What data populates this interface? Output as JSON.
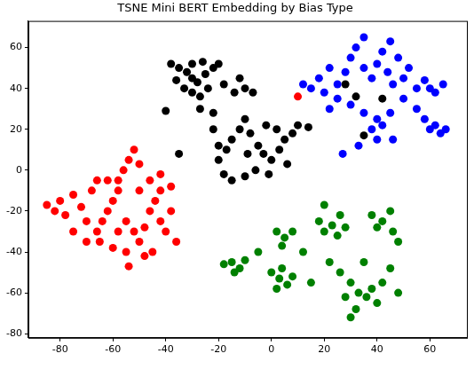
{
  "chart_data": {
    "type": "scatter",
    "title": "TSNE Mini BERT Embedding by Bias Type",
    "xlim": [
      -92,
      74
    ],
    "ylim": [
      -82,
      73
    ],
    "xticks": [
      -80,
      -60,
      -40,
      -20,
      0,
      20,
      40,
      60
    ],
    "yticks": [
      -80,
      -60,
      -40,
      -20,
      0,
      20,
      40,
      60
    ],
    "grid": false,
    "series": [
      {
        "color": "#ff0000",
        "points": [
          [
            -85,
            -17
          ],
          [
            -82,
            -20
          ],
          [
            -80,
            -15
          ],
          [
            -78,
            -22
          ],
          [
            -75,
            -12
          ],
          [
            -72,
            -18
          ],
          [
            -70,
            -25
          ],
          [
            -68,
            -10
          ],
          [
            -66,
            -30
          ],
          [
            -65,
            -35
          ],
          [
            -62,
            -20
          ],
          [
            -60,
            -15
          ],
          [
            -58,
            -5
          ],
          [
            -56,
            0
          ],
          [
            -54,
            5
          ],
          [
            -52,
            10
          ],
          [
            -50,
            3
          ],
          [
            -55,
            -25
          ],
          [
            -52,
            -30
          ],
          [
            -50,
            -35
          ],
          [
            -48,
            -28
          ],
          [
            -46,
            -20
          ],
          [
            -44,
            -15
          ],
          [
            -42,
            -25
          ],
          [
            -40,
            -30
          ],
          [
            -38,
            -20
          ],
          [
            -45,
            -40
          ],
          [
            -55,
            -40
          ],
          [
            -60,
            -38
          ],
          [
            -54,
            -47
          ],
          [
            -48,
            -42
          ],
          [
            -62,
            -5
          ],
          [
            -66,
            -5
          ],
          [
            -58,
            -10
          ],
          [
            -70,
            -35
          ],
          [
            -75,
            -30
          ],
          [
            -64,
            -25
          ],
          [
            -42,
            -10
          ],
          [
            -38,
            -8
          ],
          [
            -42,
            -2
          ],
          [
            -50,
            -10
          ],
          [
            -46,
            -5
          ],
          [
            -58,
            -30
          ],
          [
            -36,
            -35
          ],
          [
            10,
            36
          ]
        ]
      },
      {
        "color": "#008000",
        "points": [
          [
            -18,
            -46
          ],
          [
            -15,
            -45
          ],
          [
            -12,
            -48
          ],
          [
            -10,
            -44
          ],
          [
            -14,
            -50
          ],
          [
            0,
            -50
          ],
          [
            3,
            -53
          ],
          [
            6,
            -56
          ],
          [
            8,
            -52
          ],
          [
            4,
            -48
          ],
          [
            2,
            -58
          ],
          [
            2,
            -30
          ],
          [
            5,
            -33
          ],
          [
            8,
            -30
          ],
          [
            4,
            -37
          ],
          [
            12,
            -40
          ],
          [
            18,
            -25
          ],
          [
            20,
            -30
          ],
          [
            23,
            -27
          ],
          [
            26,
            -22
          ],
          [
            25,
            -32
          ],
          [
            28,
            -28
          ],
          [
            20,
            -17
          ],
          [
            38,
            -22
          ],
          [
            40,
            -28
          ],
          [
            42,
            -25
          ],
          [
            45,
            -20
          ],
          [
            46,
            -30
          ],
          [
            48,
            -35
          ],
          [
            30,
            -55
          ],
          [
            33,
            -60
          ],
          [
            36,
            -62
          ],
          [
            38,
            -58
          ],
          [
            40,
            -65
          ],
          [
            32,
            -68
          ],
          [
            30,
            -72
          ],
          [
            28,
            -62
          ],
          [
            42,
            -55
          ],
          [
            45,
            -48
          ],
          [
            22,
            -45
          ],
          [
            26,
            -50
          ],
          [
            15,
            -55
          ],
          [
            35,
            -45
          ],
          [
            48,
            -60
          ],
          [
            -5,
            -40
          ]
        ]
      },
      {
        "color": "#0000ff",
        "points": [
          [
            15,
            40
          ],
          [
            18,
            45
          ],
          [
            20,
            38
          ],
          [
            22,
            50
          ],
          [
            25,
            42
          ],
          [
            28,
            48
          ],
          [
            30,
            55
          ],
          [
            32,
            60
          ],
          [
            35,
            50
          ],
          [
            38,
            45
          ],
          [
            40,
            52
          ],
          [
            42,
            58
          ],
          [
            44,
            48
          ],
          [
            46,
            42
          ],
          [
            48,
            55
          ],
          [
            50,
            45
          ],
          [
            52,
            50
          ],
          [
            55,
            40
          ],
          [
            58,
            44
          ],
          [
            60,
            40
          ],
          [
            62,
            38
          ],
          [
            65,
            42
          ],
          [
            62,
            22
          ],
          [
            64,
            18
          ],
          [
            60,
            20
          ],
          [
            58,
            25
          ],
          [
            66,
            20
          ],
          [
            40,
            25
          ],
          [
            38,
            20
          ],
          [
            42,
            22
          ],
          [
            45,
            28
          ],
          [
            35,
            28
          ],
          [
            30,
            32
          ],
          [
            33,
            12
          ],
          [
            40,
            15
          ],
          [
            46,
            15
          ],
          [
            27,
            8
          ],
          [
            22,
            30
          ],
          [
            12,
            42
          ],
          [
            35,
            65
          ],
          [
            45,
            63
          ],
          [
            55,
            30
          ],
          [
            50,
            35
          ],
          [
            25,
            35
          ]
        ]
      },
      {
        "color": "#000000",
        "points": [
          [
            -38,
            52
          ],
          [
            -35,
            50
          ],
          [
            -32,
            48
          ],
          [
            -30,
            45
          ],
          [
            -28,
            43
          ],
          [
            -25,
            47
          ],
          [
            -22,
            50
          ],
          [
            -20,
            52
          ],
          [
            -33,
            40
          ],
          [
            -30,
            38
          ],
          [
            -27,
            36
          ],
          [
            -24,
            40
          ],
          [
            -36,
            44
          ],
          [
            -40,
            29
          ],
          [
            -18,
            42
          ],
          [
            -12,
            45
          ],
          [
            -10,
            40
          ],
          [
            -7,
            38
          ],
          [
            -14,
            38
          ],
          [
            -27,
            30
          ],
          [
            -22,
            28
          ],
          [
            -30,
            52
          ],
          [
            -26,
            53
          ],
          [
            -20,
            5
          ],
          [
            -17,
            10
          ],
          [
            -15,
            15
          ],
          [
            -12,
            20
          ],
          [
            -10,
            25
          ],
          [
            -8,
            18
          ],
          [
            -5,
            12
          ],
          [
            -3,
            8
          ],
          [
            0,
            5
          ],
          [
            3,
            10
          ],
          [
            5,
            15
          ],
          [
            8,
            18
          ],
          [
            -2,
            22
          ],
          [
            2,
            20
          ],
          [
            -6,
            0
          ],
          [
            -10,
            -3
          ],
          [
            -15,
            -5
          ],
          [
            -18,
            -2
          ],
          [
            -20,
            12
          ],
          [
            -22,
            20
          ],
          [
            -9,
            8
          ],
          [
            -1,
            -2
          ],
          [
            6,
            3
          ],
          [
            10,
            22
          ],
          [
            14,
            21
          ],
          [
            -35,
            8
          ],
          [
            28,
            42
          ],
          [
            32,
            36
          ],
          [
            35,
            17
          ],
          [
            42,
            35
          ]
        ]
      }
    ]
  }
}
